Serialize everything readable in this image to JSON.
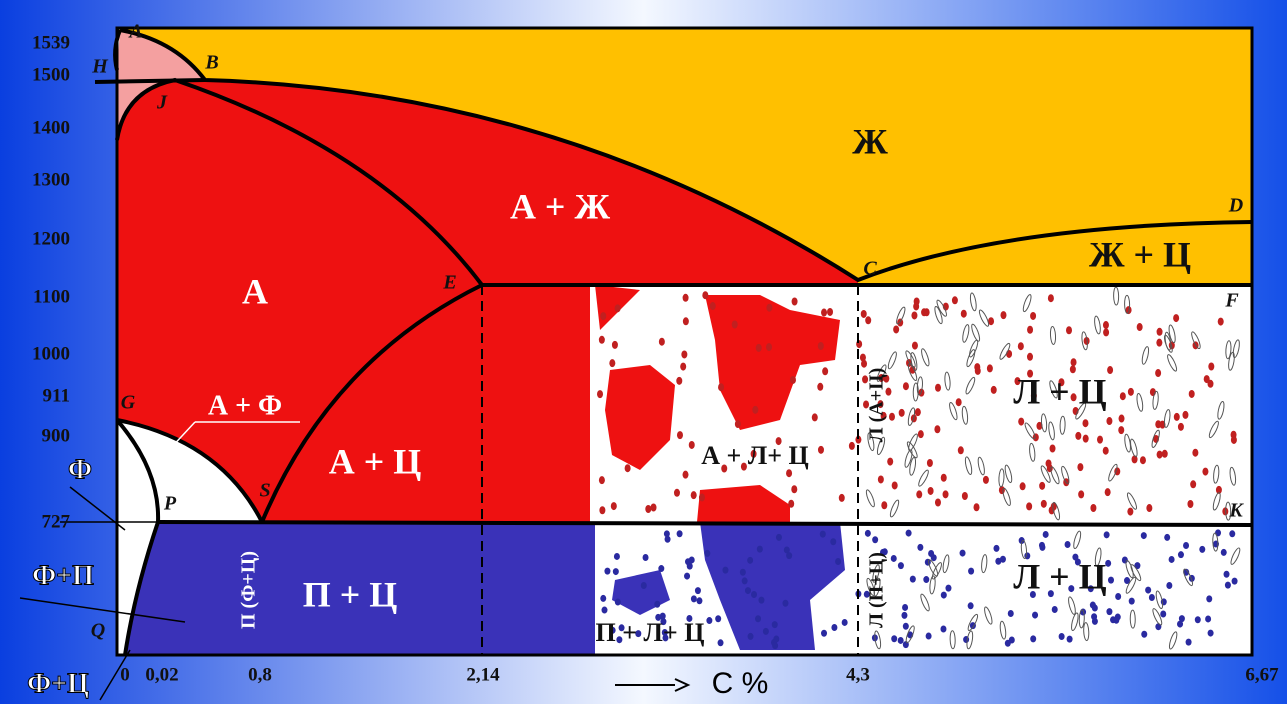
{
  "temperatures": [
    "1539",
    "1500",
    "1400",
    "1300",
    "1200",
    "1100",
    "1000",
    "911",
    "900",
    "727"
  ],
  "carbon_ticks": [
    "0",
    "0,02",
    "0,8",
    "2,14",
    "4,3",
    "6,67"
  ],
  "axis_label": "C %",
  "points": [
    "A",
    "H",
    "B",
    "J",
    "D",
    "C",
    "E",
    "F",
    "G",
    "S",
    "P",
    "K",
    "Q"
  ],
  "regions": {
    "liquid": "Ж",
    "austenite_liquid": "А + Ж",
    "liquid_cementite": "Ж + Ц",
    "austenite": "А",
    "austenite_ferrite": "А + Ф",
    "austenite_cementite": "А + Ц",
    "austenite_ledeburite_cementite": "А + Л+ Ц",
    "ledeburite_cementite_upper": "Л + Ц",
    "ledeburite_cementite_lower": "Л + Ц",
    "pearlite_cementite": "П + Ц",
    "pearlite_ledeburite_cementite": "П + Л+ Ц",
    "ledeburite_upper": "Л (А+Ц)",
    "ledeburite_lower": "Л (П+Ц)",
    "pearlite_vertical": "П (Ф+Ц)"
  },
  "side_labels": [
    "Ф",
    "Ф+П",
    "Ф+Ц"
  ]
}
